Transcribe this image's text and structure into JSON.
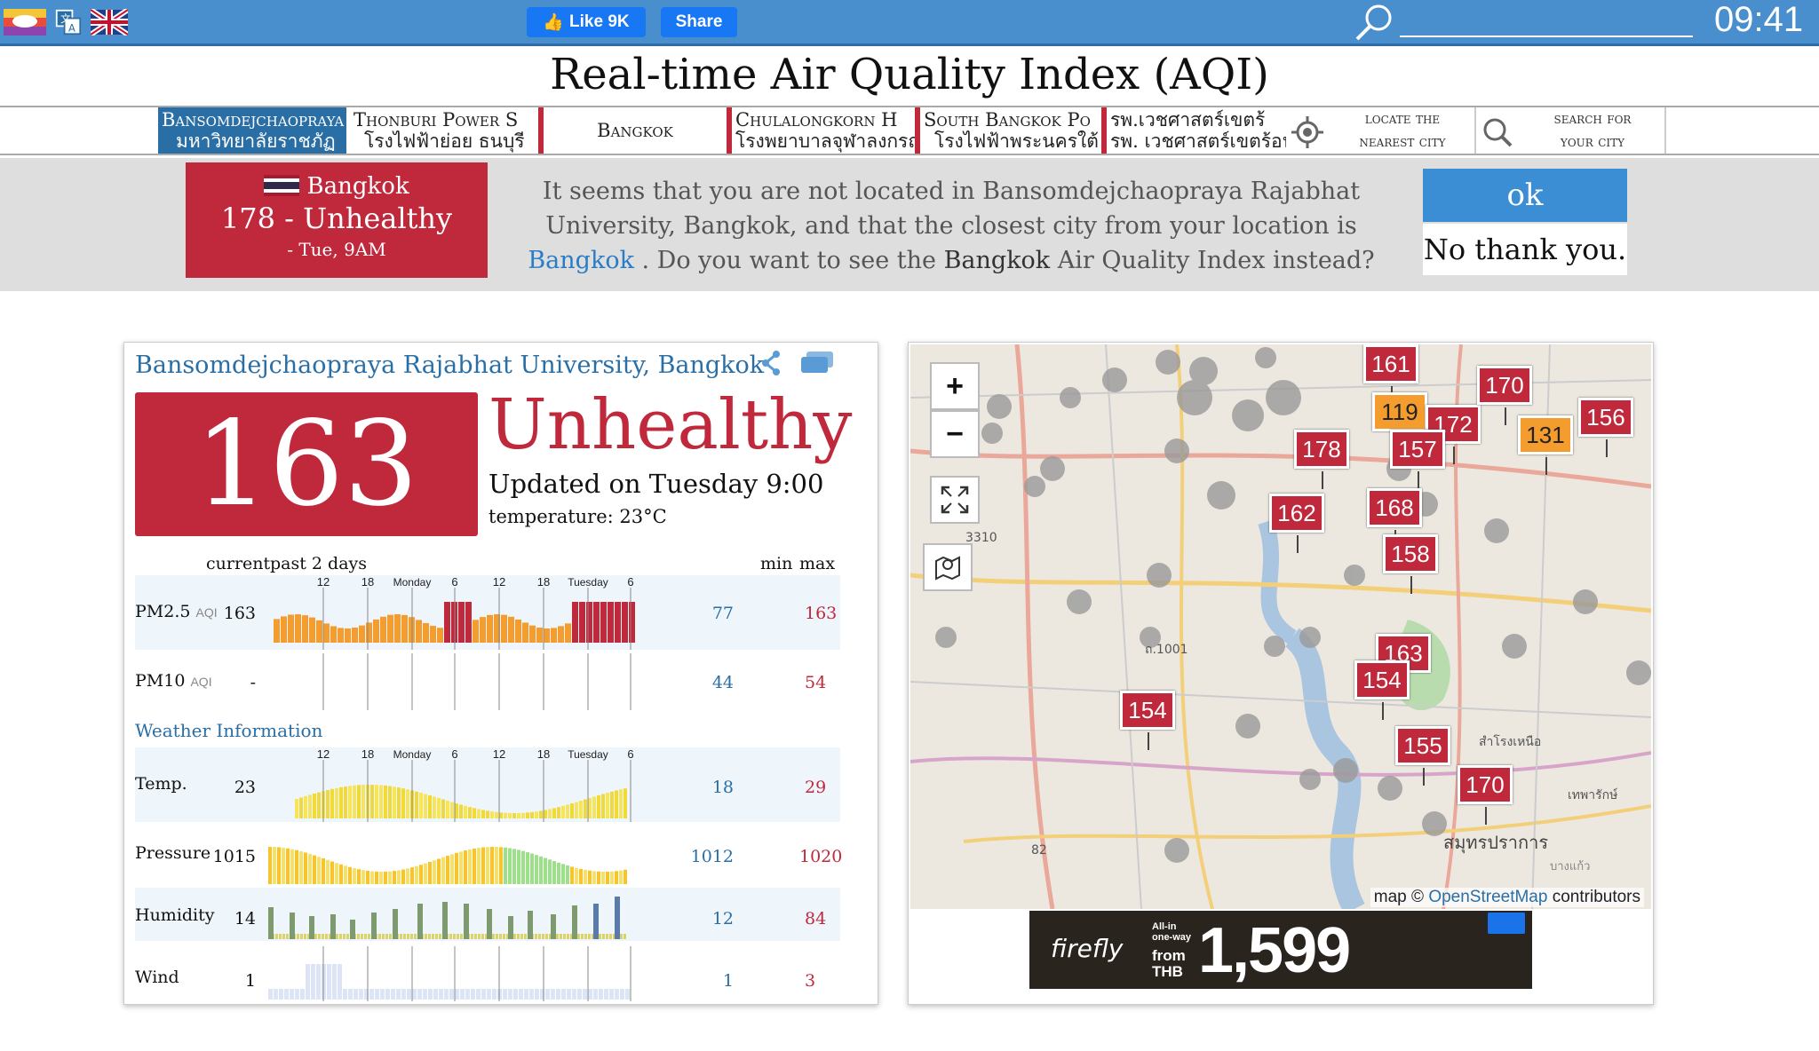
{
  "topbar": {
    "like_label": "Like 9K",
    "share_label": "Share",
    "clock": "09:41"
  },
  "page_title": "Real-time Air Quality Index (AQI)",
  "nav": {
    "stations": [
      {
        "en": "Bansomdejchaopraya",
        "th": "มหาวิทยาลัยราชภัฏ"
      },
      {
        "en": "Thonburi Power S",
        "th": "โรงไฟฟ้าย่อย ธนบุรี"
      },
      {
        "en": "Bangkok",
        "th": ""
      },
      {
        "en": "Chulalongkorn H",
        "th": "โรงพยาบาลจุฬาลงกรณ์"
      },
      {
        "en": "South Bangkok Po",
        "th": "โรงไฟฟ้าพระนครใต้"
      },
      {
        "en": "รพ.เวชศาสตร์เขตร้",
        "th": "รพ. เวชศาสตร์เขตร้อน"
      }
    ],
    "locate_line1": "locate the",
    "locate_line2": "nearest city",
    "search_line1": "search for",
    "search_line2": "your city"
  },
  "notice": {
    "card_city": "Bangkok",
    "card_aqi": "178 - Unhealthy",
    "card_time": "- Tue, 9AM",
    "text_part1": "It seems that you are not located in Bansomdejchaopraya Rajabhat University, Bangkok, and that the closest city from your location is ",
    "text_link": "Bangkok",
    "text_part2": " . Do you want to see the ",
    "text_city": "Bangkok",
    "text_part3": " Air Quality Index instead?",
    "ok_label": "ok",
    "no_label": "No thank you."
  },
  "station": {
    "name": "Bansomdejchaopraya Rajabhat University, Bangkok",
    "aqi": "163",
    "level": "Unhealthy",
    "updated": "Updated on Tuesday 9:00",
    "temperature": "temperature: 23°C"
  },
  "history": {
    "header_current": "current",
    "header_past": "past 2 days",
    "header_min": "min",
    "header_max": "max",
    "axis_labels": [
      "12",
      "18",
      "Monday",
      "6",
      "12",
      "18",
      "Tuesday",
      "6"
    ],
    "weather_heading": "Weather Information",
    "rows": [
      {
        "name": "PM2.5",
        "unit": "AQI",
        "current": "163",
        "min": "77",
        "max": "163"
      },
      {
        "name": "PM10",
        "unit": "AQI",
        "current": "-",
        "min": "44",
        "max": "54"
      },
      {
        "name": "Temp.",
        "unit": "",
        "current": "23",
        "min": "18",
        "max": "29"
      },
      {
        "name": "Pressure",
        "unit": "",
        "current": "1015",
        "min": "1012",
        "max": "1020"
      },
      {
        "name": "Humidity",
        "unit": "",
        "current": "14",
        "min": "12",
        "max": "84"
      },
      {
        "name": "Wind",
        "unit": "",
        "current": "1",
        "min": "1",
        "max": "3"
      }
    ]
  },
  "map": {
    "zoom_in": "+",
    "zoom_out": "−",
    "credit_prefix": "map © ",
    "credit_link": "OpenStreetMap",
    "credit_suffix": " contributors",
    "markers": [
      "161",
      "119",
      "172",
      "170",
      "131",
      "156",
      "178",
      "157",
      "162",
      "168",
      "158",
      "163",
      "154",
      "154",
      "155",
      "170"
    ],
    "place_labels": [
      "3310",
      "ถ.1001",
      "82",
      "สมุทรปราการ",
      "สำโรงเหนือ",
      "เทพารักษ์",
      "บางแก้ว"
    ]
  },
  "ad": {
    "brand": "firefly",
    "small": "All-in one-way",
    "from": "from THB",
    "price": "1,599"
  },
  "colors": {
    "unhealthy": "#c0283c",
    "unhealthy_sensitive": "#f59c2e",
    "accent_blue": "#2a6ea6",
    "topbar": "#4a8fcd"
  }
}
